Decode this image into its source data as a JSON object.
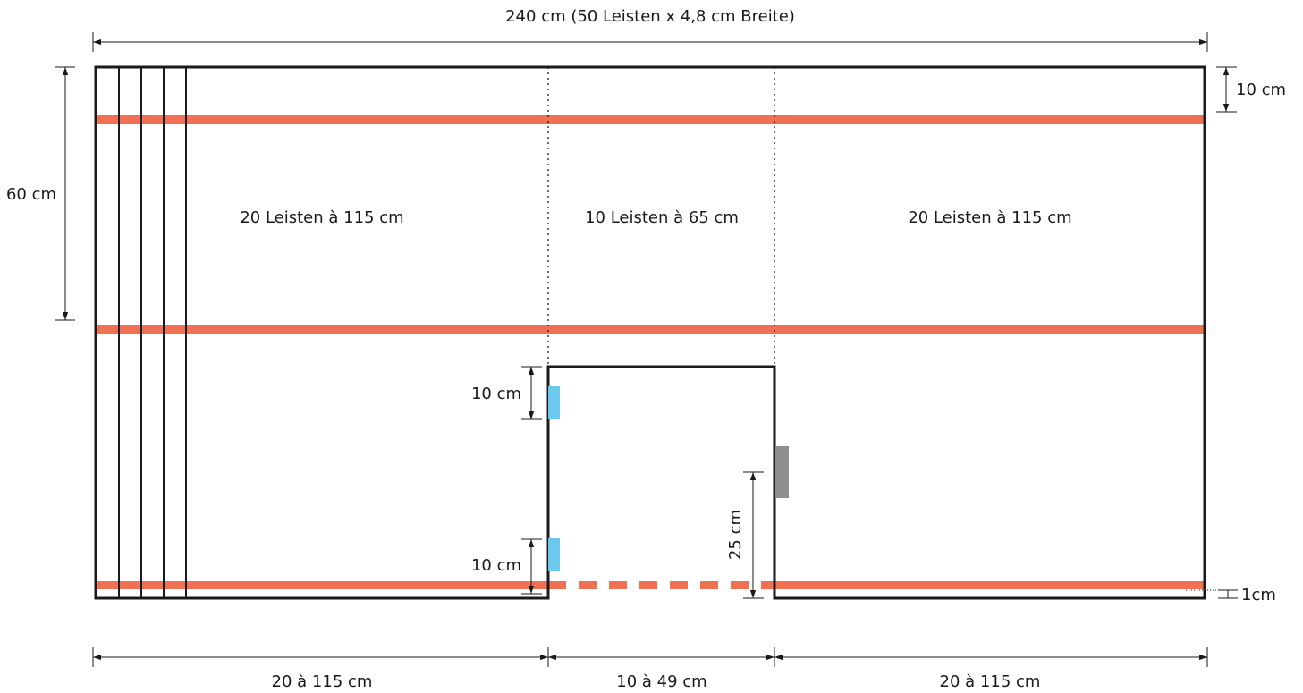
{
  "labels": {
    "total_width": "240 cm (50 Leisten x 4,8 cm Breite)",
    "height_60": "60 cm",
    "top_margin_10": "10 cm",
    "left_section": "20 Leisten à 115 cm",
    "middle_section": "10 Leisten à 65 cm",
    "right_section": "20 Leisten à 115 cm",
    "door_upper_10": "10 cm",
    "door_lower_10": "10 cm",
    "door_25": "25 cm",
    "bottom_gap_1": "1cm",
    "bottom_left": "20 à 115 cm",
    "bottom_middle": "10 à 49 cm",
    "bottom_right": "20 à 115 cm"
  },
  "colors": {
    "outline": "#1a1a1a",
    "strip": "#f07054",
    "hinge": "#6dc8f0",
    "handle": "#8e8e8e"
  }
}
